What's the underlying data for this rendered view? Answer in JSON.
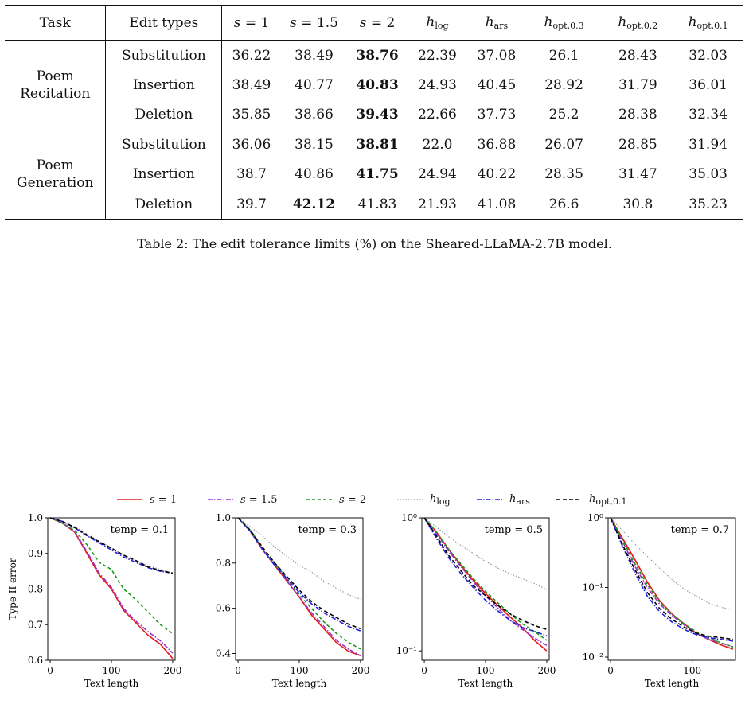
{
  "table": {
    "headers": [
      "Task",
      "Edit types",
      "s = 1",
      "s = 1.5",
      "s = 2",
      "h_log",
      "h_ars",
      "h_opt,0.3",
      "h_opt,0.2",
      "h_opt,0.1"
    ],
    "groups": [
      {
        "task": [
          "Poem",
          "Recitation"
        ],
        "rows": [
          {
            "edit": "Substitution",
            "values": [
              "36.22",
              "38.49",
              "38.76",
              "22.39",
              "37.08",
              "26.1",
              "28.43",
              "32.03"
            ],
            "bold": 2
          },
          {
            "edit": "Insertion",
            "values": [
              "38.49",
              "40.77",
              "40.83",
              "24.93",
              "40.45",
              "28.92",
              "31.79",
              "36.01"
            ],
            "bold": 2
          },
          {
            "edit": "Deletion",
            "values": [
              "35.85",
              "38.66",
              "39.43",
              "22.66",
              "37.73",
              "25.2",
              "28.38",
              "32.34"
            ],
            "bold": 2
          }
        ]
      },
      {
        "task": [
          "Poem",
          "Generation"
        ],
        "rows": [
          {
            "edit": "Substitution",
            "values": [
              "36.06",
              "38.15",
              "38.81",
              "22.0",
              "36.88",
              "26.07",
              "28.85",
              "31.94"
            ],
            "bold": 2
          },
          {
            "edit": "Insertion",
            "values": [
              "38.7",
              "40.86",
              "41.75",
              "24.94",
              "40.22",
              "28.35",
              "31.47",
              "35.03"
            ],
            "bold": 2
          },
          {
            "edit": "Deletion",
            "values": [
              "39.7",
              "42.12",
              "41.83",
              "21.93",
              "41.08",
              "26.6",
              "30.8",
              "35.23"
            ],
            "bold": 1
          }
        ]
      }
    ],
    "caption": "Table 2: The edit tolerance limits (%) on the Sheared-LLaMA-2.7B model."
  },
  "chart_data": [
    {
      "type": "line",
      "annotation": "temp = 0.1",
      "xlabel": "Text length",
      "ylabel": "Type II error",
      "xlim": [
        0,
        200
      ],
      "ylim": [
        0.6,
        1.0
      ],
      "yscale": "linear",
      "xticks": [
        0,
        100,
        200
      ],
      "yticks": [
        0.6,
        0.7,
        0.8,
        0.9,
        1.0
      ],
      "series": [
        {
          "name": "s = 1",
          "color": "#e41a1c",
          "dash": "",
          "x": [
            0,
            20,
            40,
            60,
            80,
            100,
            120,
            140,
            160,
            180,
            200
          ],
          "y": [
            1.0,
            0.985,
            0.96,
            0.9,
            0.84,
            0.8,
            0.74,
            0.705,
            0.67,
            0.645,
            0.605
          ]
        },
        {
          "name": "s = 1.5",
          "color": "#9932cc",
          "dash": "6 2 1.5 2",
          "x": [
            0,
            20,
            40,
            60,
            80,
            100,
            120,
            140,
            160,
            180,
            200
          ],
          "y": [
            1.0,
            0.985,
            0.962,
            0.905,
            0.845,
            0.805,
            0.745,
            0.71,
            0.68,
            0.655,
            0.62
          ]
        },
        {
          "name": "s = 2",
          "color": "#1a9a1a",
          "dash": "4 3",
          "x": [
            0,
            20,
            40,
            60,
            80,
            100,
            120,
            140,
            160,
            180,
            200
          ],
          "y": [
            1.0,
            0.985,
            0.965,
            0.925,
            0.875,
            0.855,
            0.8,
            0.77,
            0.735,
            0.7,
            0.675
          ]
        },
        {
          "name": "h_log",
          "color": "#999999",
          "dash": "1.5 2",
          "x": [
            0,
            20,
            40,
            60,
            80,
            100,
            120,
            140,
            160,
            180,
            200
          ],
          "y": [
            1.0,
            0.99,
            0.975,
            0.955,
            0.935,
            0.915,
            0.895,
            0.88,
            0.865,
            0.855,
            0.845
          ]
        },
        {
          "name": "h_ars",
          "color": "#1f1fe0",
          "dash": "6 2 1.5 2",
          "x": [
            0,
            20,
            40,
            60,
            80,
            100,
            120,
            140,
            160,
            180,
            200
          ],
          "y": [
            1.0,
            0.99,
            0.972,
            0.95,
            0.93,
            0.91,
            0.89,
            0.875,
            0.86,
            0.85,
            0.845
          ]
        },
        {
          "name": "h_opt,0.1",
          "color": "#000000",
          "dash": "5 3",
          "x": [
            0,
            20,
            40,
            60,
            80,
            100,
            120,
            140,
            160,
            180,
            200
          ],
          "y": [
            1.0,
            0.99,
            0.973,
            0.952,
            0.933,
            0.915,
            0.895,
            0.88,
            0.862,
            0.852,
            0.845
          ]
        }
      ]
    },
    {
      "type": "line",
      "annotation": "temp = 0.3",
      "xlabel": "Text length",
      "ylabel": "",
      "xlim": [
        0,
        200
      ],
      "ylim": [
        0.37,
        1.0
      ],
      "yscale": "linear",
      "xticks": [
        0,
        100,
        200
      ],
      "yticks": [
        0.4,
        0.6,
        0.8,
        1.0
      ],
      "series": [
        {
          "name": "s = 1",
          "color": "#e41a1c",
          "dash": "",
          "x": [
            0,
            20,
            40,
            60,
            80,
            100,
            120,
            140,
            160,
            180,
            200
          ],
          "y": [
            1.0,
            0.94,
            0.86,
            0.79,
            0.72,
            0.65,
            0.57,
            0.51,
            0.45,
            0.41,
            0.39
          ]
        },
        {
          "name": "s = 1.5",
          "color": "#9932cc",
          "dash": "6 2 1.5 2",
          "x": [
            0,
            20,
            40,
            60,
            80,
            100,
            120,
            140,
            160,
            180,
            200
          ],
          "y": [
            1.0,
            0.94,
            0.86,
            0.79,
            0.72,
            0.65,
            0.58,
            0.52,
            0.46,
            0.42,
            0.39
          ]
        },
        {
          "name": "s = 2",
          "color": "#1a9a1a",
          "dash": "4 3",
          "x": [
            0,
            20,
            40,
            60,
            80,
            100,
            120,
            140,
            160,
            180,
            200
          ],
          "y": [
            1.0,
            0.945,
            0.87,
            0.8,
            0.73,
            0.66,
            0.6,
            0.54,
            0.49,
            0.45,
            0.42
          ]
        },
        {
          "name": "h_log",
          "color": "#999999",
          "dash": "1.5 2",
          "x": [
            0,
            20,
            40,
            60,
            80,
            100,
            120,
            140,
            160,
            180,
            200
          ],
          "y": [
            1.0,
            0.96,
            0.92,
            0.87,
            0.83,
            0.79,
            0.76,
            0.72,
            0.69,
            0.66,
            0.64
          ]
        },
        {
          "name": "h_ars",
          "color": "#1f1fe0",
          "dash": "6 2 1.5 2",
          "x": [
            0,
            20,
            40,
            60,
            80,
            100,
            120,
            140,
            160,
            180,
            200
          ],
          "y": [
            1.0,
            0.94,
            0.86,
            0.79,
            0.73,
            0.67,
            0.62,
            0.58,
            0.55,
            0.52,
            0.5
          ]
        },
        {
          "name": "h_opt,0.1",
          "color": "#000000",
          "dash": "5 3",
          "x": [
            0,
            20,
            40,
            60,
            80,
            100,
            120,
            140,
            160,
            180,
            200
          ],
          "y": [
            1.0,
            0.945,
            0.87,
            0.8,
            0.74,
            0.68,
            0.63,
            0.59,
            0.56,
            0.53,
            0.51
          ]
        }
      ]
    },
    {
      "type": "line",
      "annotation": "temp = 0.5",
      "xlabel": "Text length",
      "ylabel": "",
      "xlim": [
        0,
        200
      ],
      "ylim": [
        0.085,
        1.0
      ],
      "yscale": "log",
      "xticks": [
        0,
        100,
        200
      ],
      "yticks": [
        0.1,
        1.0
      ],
      "yticklabels": [
        "10^-1",
        "10^0"
      ],
      "series": [
        {
          "name": "s = 1",
          "color": "#e41a1c",
          "dash": "",
          "x": [
            0,
            20,
            40,
            60,
            80,
            100,
            120,
            140,
            160,
            180,
            200
          ],
          "y": [
            1.0,
            0.78,
            0.58,
            0.44,
            0.34,
            0.27,
            0.22,
            0.18,
            0.15,
            0.12,
            0.1
          ]
        },
        {
          "name": "s = 1.5",
          "color": "#9932cc",
          "dash": "6 2 1.5 2",
          "x": [
            0,
            20,
            40,
            60,
            80,
            100,
            120,
            140,
            160,
            180,
            200
          ],
          "y": [
            1.0,
            0.76,
            0.56,
            0.43,
            0.33,
            0.26,
            0.21,
            0.17,
            0.145,
            0.125,
            0.11
          ]
        },
        {
          "name": "s = 2",
          "color": "#1a9a1a",
          "dash": "4 3",
          "x": [
            0,
            20,
            40,
            60,
            80,
            100,
            120,
            140,
            160,
            180,
            200
          ],
          "y": [
            1.0,
            0.78,
            0.58,
            0.45,
            0.35,
            0.28,
            0.23,
            0.19,
            0.16,
            0.14,
            0.12
          ]
        },
        {
          "name": "h_log",
          "color": "#999999",
          "dash": "1.5 2",
          "x": [
            0,
            20,
            40,
            60,
            80,
            100,
            120,
            140,
            160,
            180,
            200
          ],
          "y": [
            1.0,
            0.85,
            0.72,
            0.62,
            0.54,
            0.47,
            0.42,
            0.38,
            0.35,
            0.32,
            0.29
          ]
        },
        {
          "name": "h_ars",
          "color": "#1f1fe0",
          "dash": "6 2 1.5 2",
          "x": [
            0,
            20,
            40,
            60,
            80,
            100,
            120,
            140,
            160,
            180,
            200
          ],
          "y": [
            1.0,
            0.7,
            0.5,
            0.38,
            0.3,
            0.24,
            0.2,
            0.17,
            0.15,
            0.14,
            0.13
          ]
        },
        {
          "name": "h_opt,0.1",
          "color": "#000000",
          "dash": "5 3",
          "x": [
            0,
            20,
            40,
            60,
            80,
            100,
            120,
            140,
            160,
            180,
            200
          ],
          "y": [
            1.0,
            0.73,
            0.52,
            0.4,
            0.31,
            0.26,
            0.22,
            0.19,
            0.17,
            0.155,
            0.145
          ]
        }
      ]
    },
    {
      "type": "line",
      "annotation": "temp = 0.7",
      "xlabel": "Text length",
      "ylabel": "",
      "xlim": [
        0,
        150
      ],
      "ylim": [
        0.009,
        1.0
      ],
      "yscale": "log",
      "xticks": [
        0,
        100
      ],
      "yticks": [
        0.01,
        0.1,
        1.0
      ],
      "yticklabels": [
        "10^-2",
        "10^-1",
        "10^0"
      ],
      "series": [
        {
          "name": "s = 1",
          "color": "#e41a1c",
          "dash": "",
          "x": [
            0,
            15,
            30,
            45,
            60,
            75,
            90,
            105,
            120,
            135,
            150
          ],
          "y": [
            1.0,
            0.5,
            0.25,
            0.12,
            0.065,
            0.042,
            0.03,
            0.022,
            0.018,
            0.015,
            0.013
          ]
        },
        {
          "name": "s = 1.5",
          "color": "#9932cc",
          "dash": "6 2 1.5 2",
          "x": [
            0,
            15,
            30,
            45,
            60,
            75,
            90,
            105,
            120,
            135,
            150
          ],
          "y": [
            1.0,
            0.45,
            0.2,
            0.1,
            0.058,
            0.04,
            0.029,
            0.022,
            0.018,
            0.016,
            0.014
          ]
        },
        {
          "name": "s = 2",
          "color": "#1a9a1a",
          "dash": "4 3",
          "x": [
            0,
            15,
            30,
            45,
            60,
            75,
            90,
            105,
            120,
            135,
            150
          ],
          "y": [
            1.0,
            0.47,
            0.22,
            0.11,
            0.062,
            0.042,
            0.03,
            0.023,
            0.019,
            0.016,
            0.014
          ]
        },
        {
          "name": "h_log",
          "color": "#999999",
          "dash": "1.5 2",
          "x": [
            0,
            15,
            30,
            45,
            60,
            75,
            90,
            105,
            120,
            135,
            150
          ],
          "y": [
            1.0,
            0.65,
            0.42,
            0.28,
            0.19,
            0.13,
            0.095,
            0.075,
            0.06,
            0.052,
            0.048
          ]
        },
        {
          "name": "h_ars",
          "color": "#1f1fe0",
          "dash": "6 2 1.5 2",
          "x": [
            0,
            15,
            30,
            45,
            60,
            75,
            90,
            105,
            120,
            135,
            150
          ],
          "y": [
            1.0,
            0.38,
            0.16,
            0.075,
            0.045,
            0.032,
            0.025,
            0.021,
            0.019,
            0.018,
            0.017
          ]
        },
        {
          "name": "h_opt,0.1",
          "color": "#000000",
          "dash": "5 3",
          "x": [
            0,
            15,
            30,
            45,
            60,
            75,
            90,
            105,
            120,
            135,
            150
          ],
          "y": [
            1.0,
            0.4,
            0.18,
            0.085,
            0.05,
            0.035,
            0.027,
            0.022,
            0.02,
            0.019,
            0.018
          ]
        }
      ]
    }
  ]
}
